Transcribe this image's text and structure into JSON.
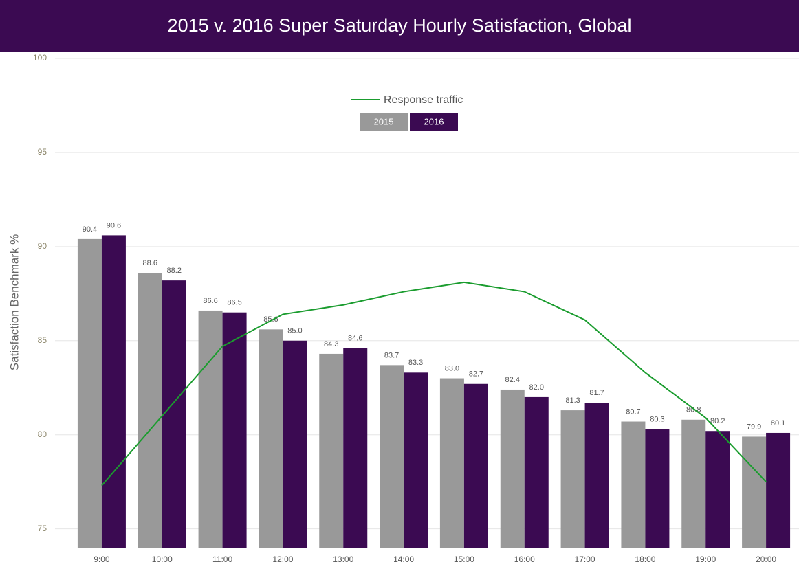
{
  "chart_data": {
    "type": "bar",
    "title": "2015 v. 2016 Super Saturday Hourly Satisfaction, Global",
    "y_label": "Satisfaction Benchmark %",
    "categories": [
      "9:00",
      "10:00",
      "11:00",
      "12:00",
      "13:00",
      "14:00",
      "15:00",
      "16:00",
      "17:00",
      "18:00",
      "19:00",
      "20:00"
    ],
    "series": [
      {
        "name": "2015",
        "color": "#999999",
        "values": [
          90.4,
          88.6,
          86.6,
          85.6,
          84.3,
          83.7,
          83.0,
          82.4,
          81.3,
          80.7,
          80.8,
          79.9
        ],
        "value_labels": [
          "90.4",
          "88.6",
          "86.6",
          "85.6",
          "84.3",
          "83.7",
          "83.0",
          "82.4",
          "81.3",
          "80.7",
          "80.8",
          "79.9"
        ]
      },
      {
        "name": "2016",
        "color": "#3b0a52",
        "values": [
          90.6,
          88.2,
          86.5,
          85.0,
          84.6,
          83.3,
          82.7,
          82.0,
          81.7,
          80.3,
          80.2,
          80.1
        ],
        "value_labels": [
          "90.6",
          "88.2",
          "86.5",
          "85.0",
          "84.6",
          "83.3",
          "82.7",
          "82.0",
          "81.7",
          "80.3",
          "80.2",
          "80.1"
        ]
      },
      {
        "name": "Response traffic",
        "type": "line",
        "color": "#1a9c2e",
        "values": [
          77.3,
          81.0,
          84.7,
          86.4,
          86.9,
          87.6,
          88.1,
          87.6,
          86.1,
          83.3,
          80.9,
          77.5
        ]
      }
    ],
    "ylim": [
      74,
      100
    ],
    "yticks": [
      75,
      80,
      85,
      90,
      95,
      100
    ],
    "grid": true,
    "legend": "top"
  }
}
